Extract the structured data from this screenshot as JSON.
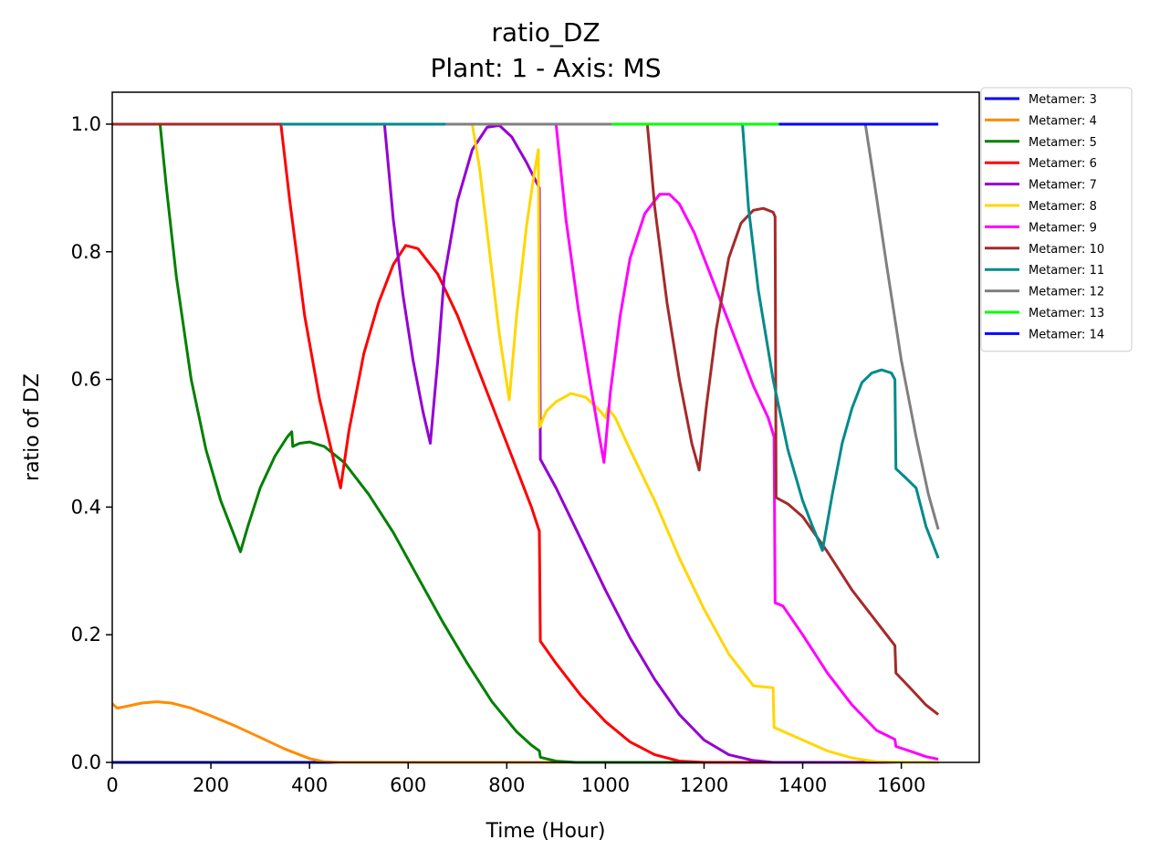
{
  "chart_data": {
    "type": "line",
    "title": "ratio_DZ",
    "subtitle": "Plant: 1 - Axis: MS",
    "xlabel": "Time (Hour)",
    "ylabel": "ratio of DZ",
    "xlim": [
      0,
      1758
    ],
    "ylim": [
      0.0,
      1.05
    ],
    "xticks": [
      0,
      200,
      400,
      600,
      800,
      1000,
      1200,
      1400,
      1600
    ],
    "yticks": [
      0.0,
      0.2,
      0.4,
      0.6,
      0.8,
      1.0
    ],
    "xtick_labels": [
      "0",
      "200",
      "400",
      "600",
      "800",
      "1000",
      "1200",
      "1400",
      "1600"
    ],
    "ytick_labels": [
      "0.0",
      "0.2",
      "0.4",
      "0.6",
      "0.8",
      "1.0"
    ],
    "grid": false,
    "legend_position": "outside top-right",
    "series": [
      {
        "name": "Metamer: 3",
        "color": "#0000ff",
        "points": [
          [
            0,
            0.0
          ],
          [
            1675,
            0.0
          ]
        ]
      },
      {
        "name": "Metamer: 4",
        "color": "#ff8c00",
        "points": [
          [
            0,
            0.092
          ],
          [
            10,
            0.085
          ],
          [
            30,
            0.088
          ],
          [
            60,
            0.093
          ],
          [
            90,
            0.095
          ],
          [
            120,
            0.093
          ],
          [
            160,
            0.085
          ],
          [
            200,
            0.073
          ],
          [
            250,
            0.057
          ],
          [
            300,
            0.039
          ],
          [
            350,
            0.021
          ],
          [
            400,
            0.006
          ],
          [
            430,
            0.001
          ],
          [
            460,
            0.0
          ],
          [
            1675,
            0.0
          ]
        ]
      },
      {
        "name": "Metamer: 5",
        "color": "#008000",
        "points": [
          [
            0,
            1.0
          ],
          [
            97,
            1.0
          ],
          [
            110,
            0.9
          ],
          [
            130,
            0.76
          ],
          [
            160,
            0.6
          ],
          [
            190,
            0.49
          ],
          [
            220,
            0.41
          ],
          [
            245,
            0.36
          ],
          [
            260,
            0.33
          ],
          [
            275,
            0.37
          ],
          [
            300,
            0.43
          ],
          [
            330,
            0.48
          ],
          [
            355,
            0.51
          ],
          [
            364,
            0.518
          ],
          [
            366,
            0.495
          ],
          [
            380,
            0.5
          ],
          [
            400,
            0.502
          ],
          [
            430,
            0.495
          ],
          [
            470,
            0.47
          ],
          [
            520,
            0.42
          ],
          [
            570,
            0.36
          ],
          [
            620,
            0.29
          ],
          [
            670,
            0.22
          ],
          [
            720,
            0.155
          ],
          [
            770,
            0.095
          ],
          [
            820,
            0.048
          ],
          [
            850,
            0.027
          ],
          [
            866,
            0.018
          ],
          [
            868,
            0.008
          ],
          [
            900,
            0.002
          ],
          [
            940,
            0.0
          ],
          [
            1675,
            0.0
          ]
        ]
      },
      {
        "name": "Metamer: 6",
        "color": "#ff0000",
        "points": [
          [
            0,
            1.0
          ],
          [
            342,
            1.0
          ],
          [
            360,
            0.88
          ],
          [
            390,
            0.7
          ],
          [
            420,
            0.57
          ],
          [
            450,
            0.47
          ],
          [
            463,
            0.43
          ],
          [
            480,
            0.52
          ],
          [
            510,
            0.64
          ],
          [
            540,
            0.72
          ],
          [
            570,
            0.78
          ],
          [
            595,
            0.81
          ],
          [
            620,
            0.805
          ],
          [
            660,
            0.765
          ],
          [
            700,
            0.7
          ],
          [
            750,
            0.6
          ],
          [
            800,
            0.5
          ],
          [
            850,
            0.4
          ],
          [
            866,
            0.362
          ],
          [
            868,
            0.19
          ],
          [
            900,
            0.155
          ],
          [
            950,
            0.105
          ],
          [
            1000,
            0.064
          ],
          [
            1050,
            0.032
          ],
          [
            1100,
            0.012
          ],
          [
            1150,
            0.002
          ],
          [
            1200,
            0.0
          ],
          [
            1675,
            0.0
          ]
        ]
      },
      {
        "name": "Metamer: 7",
        "color": "#9400d3",
        "points": [
          [
            552,
            1.0
          ],
          [
            570,
            0.85
          ],
          [
            590,
            0.73
          ],
          [
            610,
            0.63
          ],
          [
            630,
            0.55
          ],
          [
            645,
            0.5
          ],
          [
            660,
            0.63
          ],
          [
            673,
            0.76
          ],
          [
            700,
            0.88
          ],
          [
            730,
            0.96
          ],
          [
            760,
            0.995
          ],
          [
            785,
            0.998
          ],
          [
            810,
            0.98
          ],
          [
            840,
            0.94
          ],
          [
            866,
            0.9
          ],
          [
            868,
            0.475
          ],
          [
            900,
            0.43
          ],
          [
            950,
            0.35
          ],
          [
            1000,
            0.27
          ],
          [
            1050,
            0.195
          ],
          [
            1100,
            0.13
          ],
          [
            1150,
            0.075
          ],
          [
            1200,
            0.035
          ],
          [
            1250,
            0.012
          ],
          [
            1300,
            0.003
          ],
          [
            1340,
            0.0
          ],
          [
            1675,
            0.0
          ]
        ]
      },
      {
        "name": "Metamer: 8",
        "color": "#ffd700",
        "points": [
          [
            730,
            1.0
          ],
          [
            745,
            0.93
          ],
          [
            765,
            0.8
          ],
          [
            785,
            0.67
          ],
          [
            805,
            0.568
          ],
          [
            820,
            0.7
          ],
          [
            840,
            0.84
          ],
          [
            855,
            0.92
          ],
          [
            864,
            0.96
          ],
          [
            866,
            0.525
          ],
          [
            880,
            0.55
          ],
          [
            900,
            0.565
          ],
          [
            930,
            0.578
          ],
          [
            960,
            0.572
          ],
          [
            990,
            0.55
          ],
          [
            1000,
            0.54
          ],
          [
            1005,
            0.555
          ],
          [
            1020,
            0.54
          ],
          [
            1050,
            0.49
          ],
          [
            1100,
            0.41
          ],
          [
            1150,
            0.32
          ],
          [
            1200,
            0.24
          ],
          [
            1250,
            0.17
          ],
          [
            1300,
            0.12
          ],
          [
            1340,
            0.117
          ],
          [
            1342,
            0.055
          ],
          [
            1400,
            0.035
          ],
          [
            1450,
            0.018
          ],
          [
            1500,
            0.007
          ],
          [
            1550,
            0.001
          ],
          [
            1600,
            0.0
          ],
          [
            1675,
            0.0
          ]
        ]
      },
      {
        "name": "Metamer: 9",
        "color": "#ff00ff",
        "points": [
          [
            900,
            1.0
          ],
          [
            920,
            0.85
          ],
          [
            945,
            0.71
          ],
          [
            970,
            0.59
          ],
          [
            990,
            0.5
          ],
          [
            997,
            0.47
          ],
          [
            1010,
            0.58
          ],
          [
            1030,
            0.7
          ],
          [
            1050,
            0.79
          ],
          [
            1080,
            0.86
          ],
          [
            1110,
            0.89
          ],
          [
            1130,
            0.89
          ],
          [
            1150,
            0.875
          ],
          [
            1180,
            0.83
          ],
          [
            1210,
            0.77
          ],
          [
            1240,
            0.71
          ],
          [
            1270,
            0.65
          ],
          [
            1300,
            0.59
          ],
          [
            1330,
            0.54
          ],
          [
            1342,
            0.51
          ],
          [
            1344,
            0.25
          ],
          [
            1360,
            0.245
          ],
          [
            1400,
            0.2
          ],
          [
            1450,
            0.14
          ],
          [
            1500,
            0.09
          ],
          [
            1550,
            0.05
          ],
          [
            1587,
            0.036
          ],
          [
            1589,
            0.025
          ],
          [
            1620,
            0.017
          ],
          [
            1650,
            0.009
          ],
          [
            1675,
            0.005
          ]
        ]
      },
      {
        "name": "Metamer: 10",
        "color": "#a52a2a",
        "points": [
          [
            0,
            1.0
          ],
          [
            1085,
            1.0
          ],
          [
            1100,
            0.87
          ],
          [
            1125,
            0.72
          ],
          [
            1150,
            0.6
          ],
          [
            1175,
            0.5
          ],
          [
            1190,
            0.458
          ],
          [
            1205,
            0.56
          ],
          [
            1225,
            0.68
          ],
          [
            1250,
            0.79
          ],
          [
            1275,
            0.845
          ],
          [
            1300,
            0.865
          ],
          [
            1320,
            0.868
          ],
          [
            1340,
            0.862
          ],
          [
            1344,
            0.855
          ],
          [
            1346,
            0.415
          ],
          [
            1370,
            0.405
          ],
          [
            1400,
            0.385
          ],
          [
            1450,
            0.33
          ],
          [
            1500,
            0.27
          ],
          [
            1550,
            0.22
          ],
          [
            1587,
            0.183
          ],
          [
            1589,
            0.14
          ],
          [
            1620,
            0.115
          ],
          [
            1650,
            0.09
          ],
          [
            1675,
            0.075
          ]
        ]
      },
      {
        "name": "Metamer: 11",
        "color": "#008b8b",
        "points": [
          [
            342,
            1.0
          ],
          [
            1278,
            1.0
          ],
          [
            1290,
            0.87
          ],
          [
            1310,
            0.74
          ],
          [
            1340,
            0.6
          ],
          [
            1370,
            0.49
          ],
          [
            1400,
            0.41
          ],
          [
            1420,
            0.37
          ],
          [
            1440,
            0.332
          ],
          [
            1460,
            0.42
          ],
          [
            1480,
            0.5
          ],
          [
            1500,
            0.555
          ],
          [
            1520,
            0.595
          ],
          [
            1540,
            0.61
          ],
          [
            1560,
            0.615
          ],
          [
            1580,
            0.61
          ],
          [
            1587,
            0.6
          ],
          [
            1589,
            0.46
          ],
          [
            1610,
            0.445
          ],
          [
            1630,
            0.43
          ],
          [
            1650,
            0.37
          ],
          [
            1675,
            0.32
          ]
        ]
      },
      {
        "name": "Metamer: 12",
        "color": "#808080",
        "points": [
          [
            676,
            1.0
          ],
          [
            1527,
            1.0
          ],
          [
            1545,
            0.91
          ],
          [
            1570,
            0.78
          ],
          [
            1600,
            0.63
          ],
          [
            1630,
            0.51
          ],
          [
            1655,
            0.42
          ],
          [
            1675,
            0.365
          ]
        ]
      },
      {
        "name": "Metamer: 13",
        "color": "#00ff00",
        "points": [
          [
            1012,
            1.0
          ],
          [
            1352,
            1.0
          ]
        ]
      },
      {
        "name": "Metamer: 14",
        "color": "#0000ff",
        "points": [
          [
            1352,
            1.0
          ],
          [
            1675,
            1.0
          ]
        ]
      }
    ]
  }
}
